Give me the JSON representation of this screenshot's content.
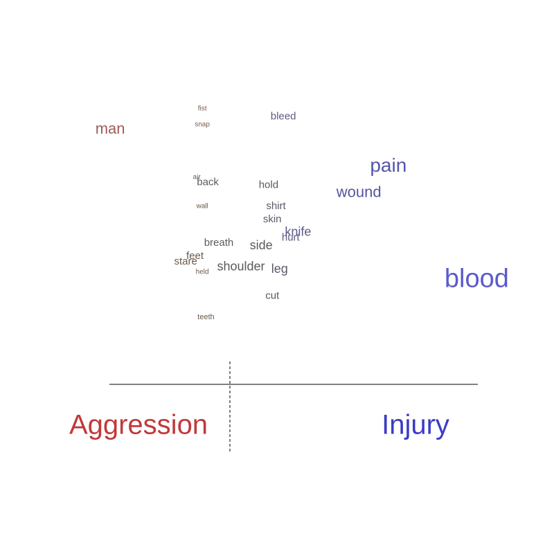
{
  "chart_data": {
    "type": "scatter",
    "title": "",
    "xlabel": "",
    "ylabel": "",
    "xlim": [
      -1,
      1
    ],
    "ylim": [
      0,
      1
    ],
    "groups": [
      {
        "name": "Aggression",
        "position": -0.6,
        "color": "#c0393b"
      },
      {
        "name": "Injury",
        "position": 0.6,
        "color": "#3b3bc8"
      }
    ],
    "colors": {
      "aggression": "#c0393b",
      "injury": "#3b3bc8",
      "axis": "#000000"
    },
    "words": [
      {
        "text": "fist",
        "x": -0.15,
        "y": 0.94,
        "size": 1,
        "color": "#7a5a4a"
      },
      {
        "text": "bleed",
        "x": 0.29,
        "y": 0.91,
        "size": 3,
        "color": "#5a5a84"
      },
      {
        "text": "man",
        "x": -0.65,
        "y": 0.86,
        "size": 5,
        "color": "#a05a5a"
      },
      {
        "text": "snap",
        "x": -0.15,
        "y": 0.88,
        "size": 1,
        "color": "#7a5a4a"
      },
      {
        "text": "pain",
        "x": 0.86,
        "y": 0.72,
        "size": 6,
        "color": "#5555aa"
      },
      {
        "text": "air",
        "x": -0.18,
        "y": 0.68,
        "size": 1,
        "color": "#6a5a4a"
      },
      {
        "text": "back",
        "x": -0.12,
        "y": 0.66,
        "size": 3,
        "color": "#5a5a5a"
      },
      {
        "text": "hold",
        "x": 0.21,
        "y": 0.65,
        "size": 3,
        "color": "#5a5a5a"
      },
      {
        "text": "wound",
        "x": 0.7,
        "y": 0.62,
        "size": 5,
        "color": "#5555a0"
      },
      {
        "text": "wall",
        "x": -0.15,
        "y": 0.57,
        "size": 1,
        "color": "#6a5a4a"
      },
      {
        "text": "shirt",
        "x": 0.25,
        "y": 0.57,
        "size": 3,
        "color": "#5a5a6a"
      },
      {
        "text": "skin",
        "x": 0.23,
        "y": 0.52,
        "size": 3,
        "color": "#5a5a6a"
      },
      {
        "text": "knife",
        "x": 0.37,
        "y": 0.47,
        "size": 4,
        "color": "#5a5a8a"
      },
      {
        "text": "hurt",
        "x": 0.33,
        "y": 0.45,
        "size": 3,
        "color": "#5a5a7a"
      },
      {
        "text": "breath",
        "x": -0.06,
        "y": 0.43,
        "size": 3,
        "color": "#5a5a5a"
      },
      {
        "text": "side",
        "x": 0.17,
        "y": 0.42,
        "size": 4,
        "color": "#5a5a5a"
      },
      {
        "text": "feet",
        "x": -0.19,
        "y": 0.38,
        "size": 3,
        "color": "#6a5a4a"
      },
      {
        "text": "stare",
        "x": -0.24,
        "y": 0.36,
        "size": 3,
        "color": "#6a5a4a"
      },
      {
        "text": "shoulder",
        "x": 0.06,
        "y": 0.34,
        "size": 4,
        "color": "#5a5a5a"
      },
      {
        "text": "leg",
        "x": 0.27,
        "y": 0.33,
        "size": 4,
        "color": "#5a5a6a"
      },
      {
        "text": "held",
        "x": -0.15,
        "y": 0.32,
        "size": 1,
        "color": "#6a5a4a"
      },
      {
        "text": "blood",
        "x": 1.34,
        "y": 0.29,
        "size": 8,
        "color": "#5a5acc"
      },
      {
        "text": "cut",
        "x": 0.23,
        "y": 0.23,
        "size": 3,
        "color": "#5a5a5a"
      },
      {
        "text": "teeth",
        "x": -0.13,
        "y": 0.15,
        "size": 2,
        "color": "#6a5a4a"
      }
    ]
  }
}
